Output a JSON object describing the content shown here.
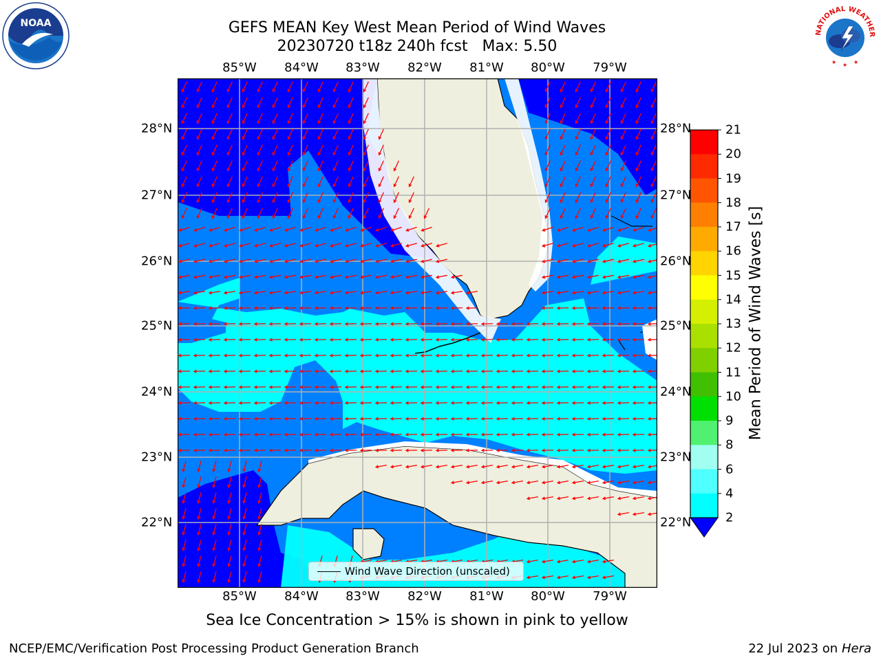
{
  "title_line1": "GEFS MEAN Key West Mean Period of Wind Waves",
  "title_line2": "20230720 t18z 240h fcst   Max: 5.50",
  "lon_labels": [
    "85°W",
    "84°W",
    "83°W",
    "82°W",
    "81°W",
    "80°W",
    "79°W"
  ],
  "lat_labels": [
    "28°N",
    "27°N",
    "26°N",
    "25°N",
    "24°N",
    "23°N",
    "22°N"
  ],
  "colorbar": {
    "label": "Mean Period of Wind Waves [s]",
    "ticks": [
      "21",
      "20",
      "19",
      "18",
      "17",
      "16",
      "15",
      "14",
      "13",
      "12",
      "11",
      "10",
      "9",
      "8",
      "6",
      "4",
      "2"
    ],
    "colors": [
      "#ff0000",
      "#ff2a00",
      "#ff5500",
      "#ff8000",
      "#ffaa00",
      "#ffd400",
      "#ffff00",
      "#d4f000",
      "#aae000",
      "#80d000",
      "#40c000",
      "#00e000",
      "#50f070",
      "#a0fff0",
      "#50ffff",
      "#00ffff",
      "#0080ff"
    ]
  },
  "legend": {
    "label": "Wind Wave Direction (unscaled)"
  },
  "ice_note": "Sea Ice Concentration > 15% is shown in pink to yellow",
  "credit_left": "NCEP/EMC/Verification Post Processing Product Generation Branch",
  "credit_date": "22 Jul 2023 on ",
  "credit_host": "Hera",
  "noaa_logo_text": "NOAA",
  "nws_logo_text": "NATIONAL WEATHER SERVICE",
  "colors": {
    "deep_blue": "#0000ff",
    "mid_blue": "#0080ff",
    "cyan": "#00ffff",
    "land": "#efefdf",
    "arrow": "#ff0000",
    "grid": "#b0b0b0"
  }
}
